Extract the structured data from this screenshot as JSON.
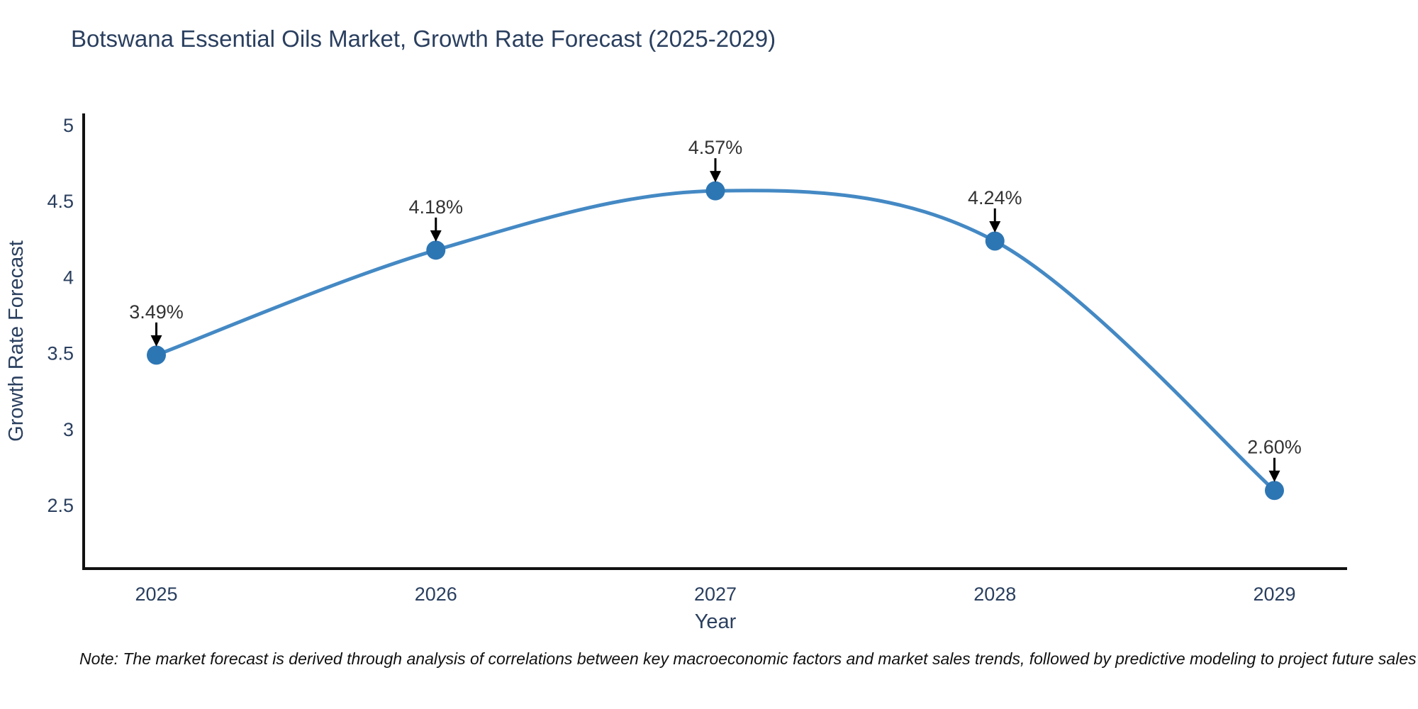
{
  "note": "Note: The market forecast is derived through analysis of correlations between key macroeconomic factors and market sales trends, followed by predictive modeling to project future sales",
  "chart_data": {
    "type": "line",
    "title": "Botswana Essential Oils Market, Growth Rate Forecast (2025-2029)",
    "xlabel": "Year",
    "ylabel": "Growth Rate Forecast",
    "x": [
      2025,
      2026,
      2027,
      2028,
      2029
    ],
    "y": [
      3.49,
      4.18,
      4.57,
      4.24,
      2.6
    ],
    "point_labels": [
      "3.49%",
      "4.18%",
      "4.57%",
      "4.24%",
      "2.60%"
    ],
    "xticks": [
      "2025",
      "2026",
      "2027",
      "2028",
      "2029"
    ],
    "yticks": [
      "2.5",
      "3",
      "3.5",
      "4",
      "4.5",
      "5"
    ],
    "xlim": [
      2024.74,
      2029.26
    ],
    "ylim": [
      2.086,
      5.079
    ],
    "line_shape": "spline",
    "grid": false,
    "legend": "none",
    "colors": {
      "line": "#4489c4",
      "marker": "#2d76b4",
      "axis": "#111111",
      "text": "#2a3f5f",
      "annotation_text": "#333333",
      "annotation_arrow": "#000000",
      "background": "#ffffff"
    }
  }
}
